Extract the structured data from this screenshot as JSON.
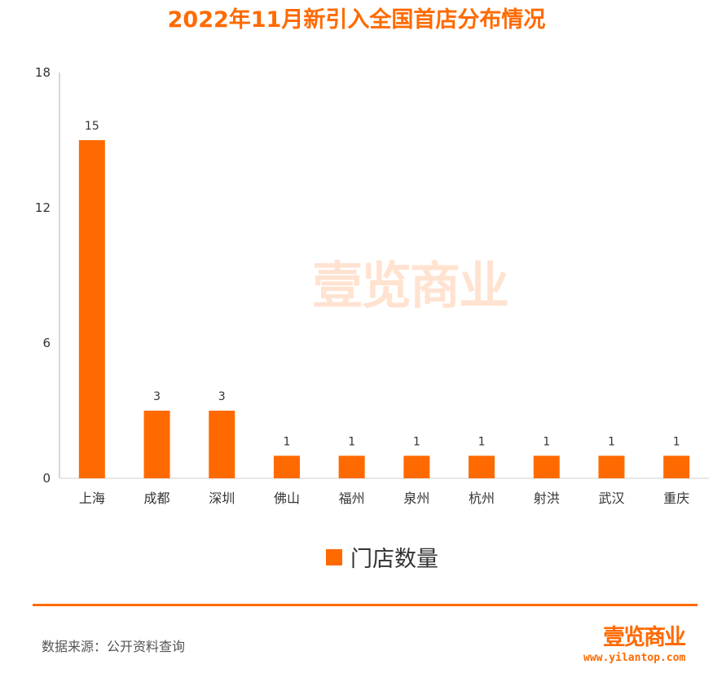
{
  "chart_data": {
    "type": "bar",
    "title": "2022年11月新引入全国首店分布情况",
    "categories": [
      "上海",
      "成都",
      "深圳",
      "佛山",
      "福州",
      "泉州",
      "杭州",
      "射洪",
      "武汉",
      "重庆"
    ],
    "series": [
      {
        "name": "门店数量",
        "values": [
          15,
          3,
          3,
          1,
          1,
          1,
          1,
          1,
          1,
          1
        ]
      }
    ],
    "ylim": [
      0,
      18
    ],
    "yticks": [
      0,
      6,
      12,
      18
    ],
    "data_labels": [
      "15",
      "3",
      "3",
      "1",
      "1",
      "1",
      "1",
      "1",
      "1",
      "1"
    ],
    "ytick_labels": [
      "0",
      "6",
      "12",
      "18"
    ],
    "grid": false,
    "legend_position": "bottom-center",
    "bar_color": "#ff6a00"
  },
  "watermark": {
    "text": "壹览商业"
  },
  "footer": {
    "source": "数据来源：公开资料查询",
    "brand": "壹览商业",
    "url": "www.yilantop.com",
    "accent_color": "#ff6a00"
  }
}
